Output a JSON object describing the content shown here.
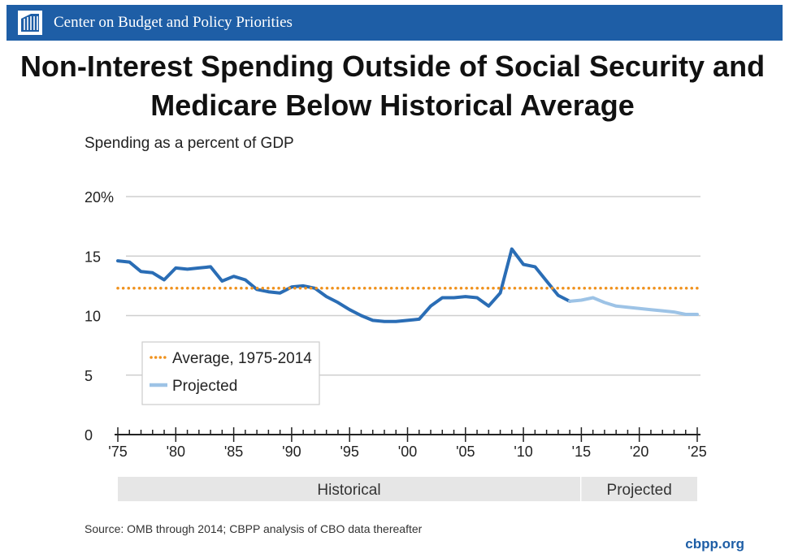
{
  "header": {
    "org_name": "Center on Budget and Policy Priorities",
    "brand_color": "#1e5ea6",
    "logo_icon": "cbpp-building-logo-icon"
  },
  "chart_data": {
    "type": "line",
    "title": "Non-Interest Spending Outside of Social Security and Medicare Below Historical Average",
    "subtitle": "Spending as a percent of GDP",
    "xlabel": "",
    "ylabel": "",
    "ylim": [
      0,
      20
    ],
    "xlim": [
      1975,
      2025
    ],
    "y_ticks": [
      0,
      5,
      10,
      15,
      20
    ],
    "y_tick_labels": [
      "0",
      "5",
      "10",
      "15",
      "20%"
    ],
    "x_tick_labels": [
      {
        "x": 1975,
        "label": "'75"
      },
      {
        "x": 1980,
        "label": "'80"
      },
      {
        "x": 1985,
        "label": "'85"
      },
      {
        "x": 1990,
        "label": "'90"
      },
      {
        "x": 1995,
        "label": "'95"
      },
      {
        "x": 2000,
        "label": "'00"
      },
      {
        "x": 2005,
        "label": "'05"
      },
      {
        "x": 2010,
        "label": "'10"
      },
      {
        "x": 2015,
        "label": "'15"
      },
      {
        "x": 2020,
        "label": "'20"
      },
      {
        "x": 2025,
        "label": "'25"
      }
    ],
    "grid": true,
    "legend_placement": "bottom-left",
    "series": [
      {
        "key": "historical",
        "color": "#2a6db5",
        "x": [
          1975,
          1976,
          1977,
          1978,
          1979,
          1980,
          1981,
          1982,
          1983,
          1984,
          1985,
          1986,
          1987,
          1988,
          1989,
          1990,
          1991,
          1992,
          1993,
          1994,
          1995,
          1996,
          1997,
          1998,
          1999,
          2000,
          2001,
          2002,
          2003,
          2004,
          2005,
          2006,
          2007,
          2008,
          2009,
          2010,
          2011,
          2012,
          2013,
          2014
        ],
        "values": [
          14.6,
          14.5,
          13.7,
          13.6,
          13.0,
          14.0,
          13.9,
          14.0,
          14.1,
          12.9,
          13.3,
          13.0,
          12.2,
          12.0,
          11.9,
          12.4,
          12.5,
          12.3,
          11.6,
          11.1,
          10.5,
          10.0,
          9.6,
          9.5,
          9.5,
          9.6,
          9.7,
          10.8,
          11.5,
          11.5,
          11.6,
          11.5,
          10.8,
          11.9,
          15.6,
          14.3,
          14.1,
          12.9,
          11.7,
          11.2
        ]
      },
      {
        "key": "projected",
        "name": "Projected",
        "color": "#9dc3e6",
        "x": [
          2014,
          2015,
          2016,
          2017,
          2018,
          2019,
          2020,
          2021,
          2022,
          2023,
          2024,
          2025
        ],
        "values": [
          11.2,
          11.3,
          11.5,
          11.1,
          10.8,
          10.7,
          10.6,
          10.5,
          10.4,
          10.3,
          10.1,
          10.1
        ]
      },
      {
        "key": "average",
        "name": "Average, 1975-2014",
        "color": "#f0921e",
        "style": "dotted",
        "x": [
          1975,
          2025
        ],
        "values": [
          12.3,
          12.3
        ]
      }
    ],
    "periods": [
      {
        "label": "Historical",
        "from": 1975,
        "to": 2014.9
      },
      {
        "label": "Projected",
        "from": 2015,
        "to": 2025
      }
    ]
  },
  "footer": {
    "source": "Source: OMB through 2014; CBPP analysis of CBO data thereafter",
    "site": "cbpp.org"
  }
}
